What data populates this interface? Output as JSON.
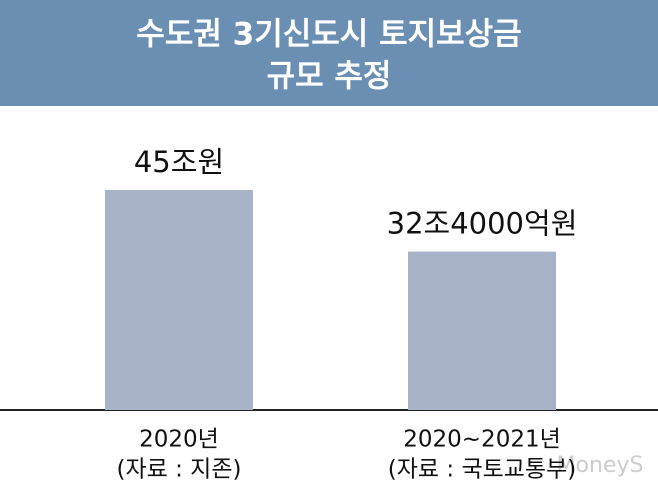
{
  "chart_data": {
    "type": "bar",
    "title": [
      "수도권 3기신도시 토지보상금",
      "규모 추정"
    ],
    "categories": [
      "2020년",
      "2020~2021년"
    ],
    "sources": [
      "(자료 : 지존)",
      "(자료 : 국토교통부)"
    ],
    "values": [
      45,
      32.4
    ],
    "value_labels": [
      "45조원",
      "32조4000억원"
    ],
    "color": "#a9b3c8",
    "watermark": "MoneyS"
  }
}
